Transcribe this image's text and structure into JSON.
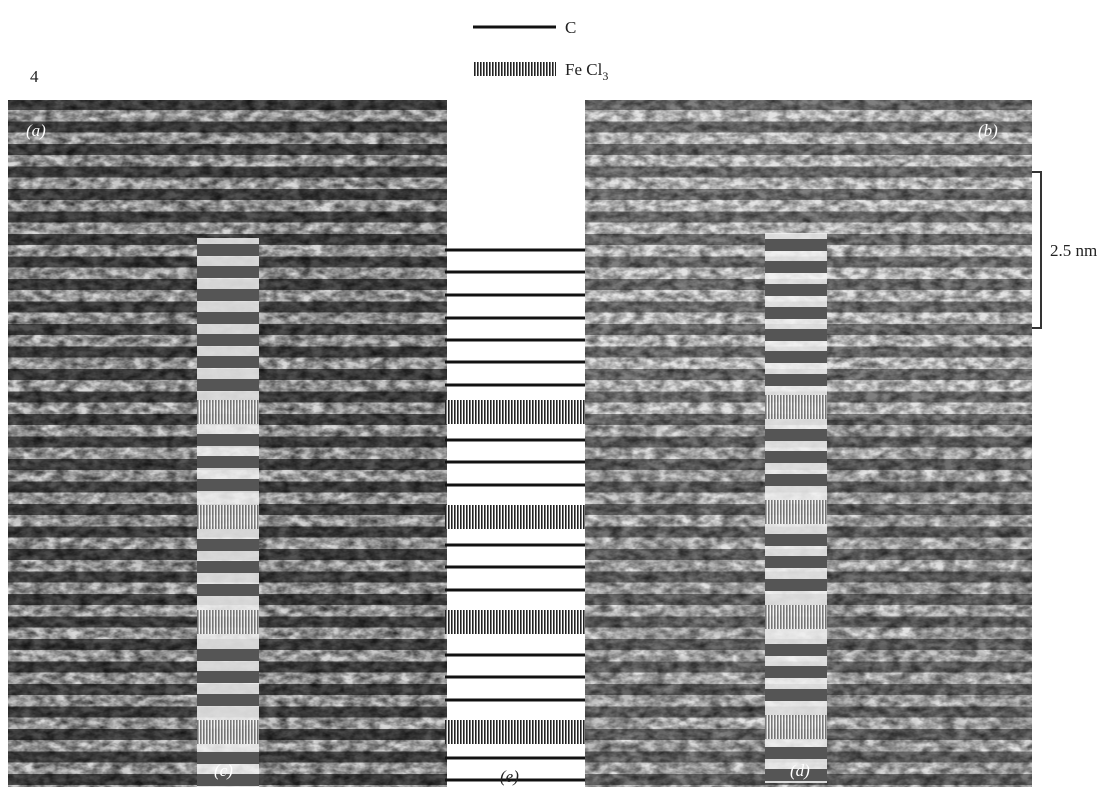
{
  "figure": {
    "number": "4",
    "legend": {
      "carbon": "C",
      "intercalant": {
        "text": "Fe Cl",
        "subscript": "3"
      }
    },
    "panels": {
      "a": "(a)",
      "b": "(b)",
      "c": "(c)",
      "d": "(d)",
      "e": "(e)"
    },
    "scale_bar": "2.5 nm"
  }
}
